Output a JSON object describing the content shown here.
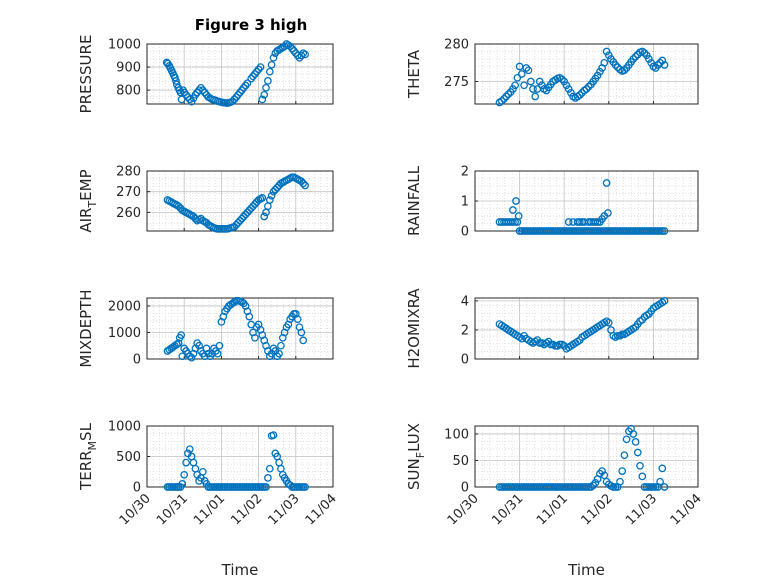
{
  "figure": {
    "title": "Figure 3 high"
  },
  "chart_data": [
    {
      "type": "scatter",
      "ylabel": "PRESSURE",
      "xlabel": "",
      "ylim": [
        740,
        1000
      ],
      "yticks": [
        "800",
        "900",
        "1000"
      ],
      "xlim": [
        0,
        5
      ],
      "xticks": [
        "10/30",
        "10/31",
        "11/01",
        "11/02",
        "11/03",
        "11/04"
      ],
      "x": [
        0.53,
        0.56,
        0.6,
        0.63,
        0.66,
        0.69,
        0.72,
        0.75,
        0.78,
        0.8,
        0.84,
        0.87,
        0.9,
        0.93,
        0.97,
        1.0,
        1.05,
        1.1,
        1.15,
        1.2,
        1.25,
        1.3,
        1.35,
        1.4,
        1.45,
        1.5,
        1.55,
        1.6,
        1.65,
        1.7,
        1.75,
        1.8,
        1.85,
        1.9,
        1.95,
        2.0,
        2.05,
        2.1,
        2.15,
        2.2,
        2.25,
        2.3,
        2.35,
        2.4,
        2.45,
        2.5,
        2.55,
        2.6,
        2.65,
        2.7,
        2.8,
        2.85,
        2.9,
        2.95,
        3.0,
        3.05,
        3.1,
        3.15,
        3.2,
        3.25,
        3.3,
        3.35,
        3.4,
        3.45,
        3.5,
        3.55,
        3.6,
        3.65,
        3.7,
        3.75,
        3.8,
        3.85,
        3.9,
        3.95,
        4.0,
        4.05,
        4.1,
        4.15,
        4.2,
        4.25
      ],
      "y": [
        920,
        915,
        905,
        895,
        885,
        875,
        865,
        855,
        840,
        825,
        810,
        800,
        790,
        760,
        800,
        790,
        780,
        770,
        760,
        750,
        765,
        780,
        790,
        800,
        810,
        800,
        790,
        780,
        770,
        765,
        760,
        758,
        755,
        752,
        750,
        748,
        746,
        745,
        744,
        745,
        748,
        752,
        760,
        770,
        780,
        790,
        800,
        810,
        820,
        830,
        850,
        860,
        870,
        880,
        890,
        900,
        760,
        780,
        810,
        840,
        880,
        910,
        940,
        960,
        970,
        975,
        980,
        985,
        990,
        1000,
        995,
        990,
        980,
        970,
        960,
        950,
        940,
        950,
        960,
        955
      ]
    },
    {
      "type": "scatter",
      "ylabel": "THETA",
      "xlabel": "",
      "ylim": [
        272,
        280
      ],
      "yticks": [
        "275",
        "280"
      ],
      "xlim": [
        0,
        5
      ],
      "xticks": [
        "10/30",
        "10/31",
        "11/01",
        "11/02",
        "11/03",
        "11/04"
      ],
      "x": [
        0.55,
        0.6,
        0.65,
        0.7,
        0.75,
        0.8,
        0.85,
        0.9,
        0.95,
        1.0,
        1.05,
        1.1,
        1.15,
        1.2,
        1.25,
        1.3,
        1.35,
        1.4,
        1.45,
        1.5,
        1.55,
        1.6,
        1.65,
        1.7,
        1.75,
        1.8,
        1.85,
        1.9,
        1.95,
        2.0,
        2.05,
        2.1,
        2.15,
        2.2,
        2.25,
        2.3,
        2.35,
        2.4,
        2.45,
        2.5,
        2.55,
        2.6,
        2.65,
        2.7,
        2.75,
        2.8,
        2.85,
        2.9,
        2.95,
        3.0,
        3.05,
        3.1,
        3.15,
        3.2,
        3.25,
        3.3,
        3.35,
        3.4,
        3.45,
        3.5,
        3.55,
        3.6,
        3.65,
        3.7,
        3.75,
        3.8,
        3.85,
        3.9,
        3.95,
        4.0,
        4.05,
        4.1,
        4.15,
        4.2,
        4.25
      ],
      "y": [
        272.2,
        272.4,
        272.7,
        273.0,
        273.3,
        273.6,
        274.0,
        274.5,
        275.5,
        277.0,
        276.0,
        274.5,
        276.8,
        276.5,
        275.0,
        274.0,
        273.0,
        274.0,
        275.0,
        274.5,
        274.0,
        273.8,
        274.2,
        274.6,
        275.0,
        275.2,
        275.4,
        275.5,
        275.3,
        275.0,
        274.5,
        274.0,
        273.5,
        273.0,
        272.8,
        273.0,
        273.2,
        273.5,
        273.8,
        274.0,
        274.3,
        274.6,
        275.0,
        275.4,
        275.8,
        276.3,
        276.8,
        277.5,
        279.0,
        278.5,
        278.0,
        277.6,
        277.2,
        276.9,
        276.6,
        276.4,
        276.5,
        276.8,
        277.2,
        277.6,
        278.0,
        278.3,
        278.6,
        278.9,
        279.0,
        278.8,
        278.5,
        278.0,
        277.5,
        277.0,
        276.8,
        277.2,
        277.5,
        277.8,
        277.2
      ]
    },
    {
      "type": "scatter",
      "ylabel": "AIR_TEMP",
      "xlabel": "",
      "ylim": [
        251,
        280
      ],
      "yticks": [
        "260",
        "270",
        "280"
      ],
      "xlim": [
        0,
        5
      ],
      "xticks": [
        "10/30",
        "10/31",
        "11/01",
        "11/02",
        "11/03",
        "11/04"
      ],
      "x": [
        0.55,
        0.6,
        0.65,
        0.7,
        0.75,
        0.8,
        0.85,
        0.9,
        0.95,
        1.0,
        1.05,
        1.1,
        1.15,
        1.2,
        1.25,
        1.3,
        1.35,
        1.4,
        1.45,
        1.5,
        1.55,
        1.6,
        1.65,
        1.7,
        1.75,
        1.8,
        1.85,
        1.9,
        1.95,
        2.0,
        2.05,
        2.1,
        2.15,
        2.2,
        2.25,
        2.3,
        2.35,
        2.4,
        2.45,
        2.5,
        2.55,
        2.6,
        2.65,
        2.7,
        2.75,
        2.8,
        2.85,
        2.9,
        2.95,
        3.0,
        3.05,
        3.1,
        3.15,
        3.2,
        3.25,
        3.3,
        3.35,
        3.4,
        3.45,
        3.5,
        3.55,
        3.6,
        3.65,
        3.7,
        3.75,
        3.8,
        3.85,
        3.9,
        3.95,
        4.0,
        4.05,
        4.1,
        4.15,
        4.2,
        4.25
      ],
      "y": [
        266,
        265.5,
        265,
        264.5,
        264,
        263.5,
        263,
        262,
        261,
        260.5,
        260,
        259.5,
        259,
        258.5,
        258,
        257,
        256,
        256.5,
        257,
        256,
        255.5,
        255,
        254,
        253.5,
        253,
        252.5,
        252.2,
        252,
        252,
        252,
        252,
        252,
        252,
        252.2,
        252.5,
        252.8,
        253,
        254,
        255,
        256,
        257,
        258,
        259,
        260,
        261,
        262,
        263,
        264,
        265,
        266,
        266.5,
        267,
        258,
        260,
        263,
        266,
        268,
        270,
        271,
        272,
        273,
        274,
        274.5,
        275,
        275.5,
        276,
        276.5,
        277,
        277,
        276.5,
        276,
        275.5,
        275,
        274,
        273
      ]
    },
    {
      "type": "scatter",
      "ylabel": "RAINFALL",
      "xlabel": "",
      "ylim": [
        0,
        2
      ],
      "yticks": [
        "0",
        "1",
        "2"
      ],
      "xlim": [
        0,
        5
      ],
      "xticks": [
        "10/30",
        "10/31",
        "11/01",
        "11/02",
        "11/03",
        "11/04"
      ],
      "x": [
        0.55,
        0.6,
        0.65,
        0.7,
        0.75,
        0.8,
        0.85,
        0.9,
        0.95,
        1.0,
        1.05,
        1.1,
        1.15,
        1.2,
        1.25,
        1.3,
        1.35,
        1.4,
        1.45,
        1.5,
        1.55,
        1.6,
        1.65,
        1.7,
        1.75,
        1.8,
        1.85,
        1.9,
        1.95,
        2.0,
        2.05,
        2.1,
        2.15,
        2.2,
        2.25,
        2.3,
        2.35,
        2.4,
        2.45,
        2.5,
        2.55,
        2.6,
        2.65,
        2.7,
        2.75,
        2.8,
        2.85,
        2.9,
        2.95,
        3.0,
        3.05,
        3.1,
        3.15,
        3.2,
        3.25,
        3.3,
        3.35,
        3.4,
        3.45,
        3.5,
        3.55,
        3.6,
        3.65,
        3.7,
        3.75,
        3.8,
        3.85,
        3.9,
        3.95,
        4.0,
        4.05,
        4.1,
        4.15,
        4.2,
        4.25,
        0.85,
        0.92,
        0.98,
        2.1,
        2.2,
        2.3,
        2.35,
        2.4,
        2.45,
        2.55,
        2.6,
        2.65,
        2.7,
        2.75,
        2.8,
        2.85,
        2.9,
        2.95,
        2.98
      ],
      "y": [
        0.3,
        0.3,
        0.3,
        0.3,
        0.3,
        0.3,
        0.3,
        0.3,
        0.3,
        0,
        0,
        0,
        0,
        0,
        0,
        0,
        0,
        0,
        0,
        0,
        0,
        0,
        0,
        0,
        0,
        0,
        0,
        0,
        0,
        0,
        0,
        0,
        0,
        0,
        0,
        0,
        0,
        0,
        0,
        0,
        0,
        0,
        0,
        0,
        0,
        0,
        0,
        0,
        0,
        0,
        0,
        0,
        0,
        0,
        0,
        0,
        0,
        0,
        0,
        0,
        0,
        0,
        0,
        0,
        0,
        0,
        0,
        0,
        0,
        0,
        0,
        0,
        0,
        0,
        0,
        0.7,
        1.0,
        0.5,
        0.3,
        0.3,
        0.3,
        0.3,
        0.3,
        0.3,
        0.3,
        0.3,
        0.3,
        0.3,
        0.3,
        0.3,
        0.4,
        0.5,
        1.6,
        0.6
      ]
    },
    {
      "type": "scatter",
      "ylabel": "MIXDEPTH",
      "xlabel": "",
      "ylim": [
        0,
        2300
      ],
      "yticks": [
        "0",
        "1000",
        "2000"
      ],
      "xlim": [
        0,
        5
      ],
      "xticks": [
        "10/30",
        "10/31",
        "11/01",
        "11/02",
        "11/03",
        "11/04"
      ],
      "x": [
        0.55,
        0.6,
        0.65,
        0.7,
        0.75,
        0.8,
        0.85,
        0.88,
        0.92,
        0.95,
        1.0,
        1.05,
        1.1,
        1.15,
        1.2,
        1.25,
        1.3,
        1.35,
        1.4,
        1.45,
        1.5,
        1.55,
        1.6,
        1.65,
        1.7,
        1.75,
        1.8,
        1.85,
        1.9,
        1.95,
        2.0,
        2.05,
        2.1,
        2.15,
        2.2,
        2.25,
        2.3,
        2.35,
        2.4,
        2.45,
        2.5,
        2.55,
        2.6,
        2.65,
        2.7,
        2.75,
        2.8,
        2.85,
        2.9,
        2.95,
        3.0,
        3.05,
        3.1,
        3.15,
        3.2,
        3.25,
        3.3,
        3.35,
        3.4,
        3.45,
        3.5,
        3.55,
        3.6,
        3.65,
        3.7,
        3.75,
        3.8,
        3.85,
        3.9,
        3.95,
        4.0,
        4.05,
        4.1,
        4.15,
        4.2
      ],
      "y": [
        300,
        350,
        400,
        450,
        500,
        550,
        600,
        800,
        900,
        100,
        400,
        300,
        200,
        100,
        50,
        200,
        400,
        600,
        500,
        300,
        200,
        100,
        400,
        200,
        100,
        200,
        400,
        300,
        200,
        500,
        1400,
        1600,
        1800,
        1900,
        2000,
        2050,
        2100,
        2150,
        2200,
        2200,
        2180,
        2150,
        2100,
        2000,
        1800,
        1600,
        1300,
        1000,
        800,
        1200,
        1300,
        1100,
        900,
        700,
        500,
        300,
        100,
        200,
        400,
        300,
        100,
        200,
        500,
        800,
        1000,
        1200,
        1300,
        1500,
        1600,
        1700,
        1700,
        1500,
        1200,
        1000,
        700
      ]
    },
    {
      "type": "scatter",
      "ylabel": "H2OMIXRA",
      "xlabel": "",
      "ylim": [
        0,
        4.2
      ],
      "yticks": [
        "0",
        "2",
        "4"
      ],
      "xlim": [
        0,
        5
      ],
      "xticks": [
        "10/30",
        "10/31",
        "11/01",
        "11/02",
        "11/03",
        "11/04"
      ],
      "x": [
        0.55,
        0.6,
        0.65,
        0.7,
        0.75,
        0.8,
        0.85,
        0.9,
        0.95,
        1.0,
        1.05,
        1.1,
        1.15,
        1.2,
        1.25,
        1.3,
        1.35,
        1.4,
        1.45,
        1.5,
        1.55,
        1.6,
        1.65,
        1.7,
        1.75,
        1.8,
        1.85,
        1.9,
        1.95,
        2.0,
        2.05,
        2.1,
        2.15,
        2.2,
        2.25,
        2.3,
        2.35,
        2.4,
        2.45,
        2.5,
        2.55,
        2.6,
        2.65,
        2.7,
        2.75,
        2.8,
        2.85,
        2.9,
        2.95,
        3.0,
        3.05,
        3.1,
        3.15,
        3.2,
        3.25,
        3.3,
        3.35,
        3.4,
        3.45,
        3.5,
        3.55,
        3.6,
        3.65,
        3.7,
        3.75,
        3.8,
        3.85,
        3.9,
        3.95,
        4.0,
        4.05,
        4.1,
        4.15,
        4.2,
        4.25
      ],
      "y": [
        2.4,
        2.3,
        2.2,
        2.1,
        2.0,
        1.9,
        1.8,
        1.7,
        1.6,
        1.5,
        1.4,
        1.6,
        1.4,
        1.3,
        1.2,
        1.1,
        1.2,
        1.3,
        1.1,
        1.1,
        1.0,
        1.1,
        1.2,
        1.0,
        1.0,
        0.9,
        0.9,
        1.0,
        1.0,
        0.9,
        0.7,
        0.8,
        0.9,
        1.0,
        1.1,
        1.2,
        1.3,
        1.5,
        1.6,
        1.7,
        1.8,
        1.9,
        2.0,
        2.1,
        2.2,
        2.3,
        2.4,
        2.5,
        2.6,
        2.5,
        2.0,
        1.6,
        1.5,
        1.6,
        1.6,
        1.7,
        1.7,
        1.8,
        1.9,
        2.0,
        2.1,
        2.2,
        2.4,
        2.6,
        2.7,
        2.9,
        3.0,
        3.1,
        3.3,
        3.5,
        3.6,
        3.7,
        3.8,
        3.9,
        4.0
      ]
    },
    {
      "type": "scatter",
      "ylabel": "TERR_MSL",
      "xlabel": "Time",
      "ylim": [
        0,
        1000
      ],
      "yticks": [
        "0",
        "500",
        "1000"
      ],
      "xlim": [
        0,
        5
      ],
      "xticks": [
        "10/30",
        "10/31",
        "11/01",
        "11/02",
        "11/03",
        "11/04"
      ],
      "x": [
        0.55,
        0.6,
        0.65,
        0.7,
        0.75,
        0.8,
        0.85,
        0.9,
        0.95,
        1.0,
        1.05,
        1.1,
        1.15,
        1.2,
        1.25,
        1.3,
        1.35,
        1.4,
        1.45,
        1.5,
        1.55,
        1.6,
        1.65,
        1.7,
        1.75,
        1.8,
        1.85,
        1.9,
        1.95,
        2.0,
        2.05,
        2.1,
        2.15,
        2.2,
        2.25,
        2.3,
        2.35,
        2.4,
        2.45,
        2.5,
        2.55,
        2.6,
        2.65,
        2.7,
        2.75,
        2.8,
        2.85,
        2.9,
        2.95,
        3.0,
        3.05,
        3.1,
        3.15,
        3.2,
        3.25,
        3.3,
        3.35,
        3.4,
        3.45,
        3.5,
        3.55,
        3.6,
        3.65,
        3.7,
        3.75,
        3.8,
        3.85,
        3.9,
        3.95,
        4.0,
        4.05,
        4.1,
        4.15,
        4.2,
        4.25
      ],
      "y": [
        0,
        0,
        0,
        0,
        0,
        0,
        0,
        0,
        50,
        200,
        400,
        550,
        620,
        500,
        400,
        300,
        200,
        100,
        150,
        250,
        100,
        50,
        0,
        0,
        0,
        0,
        0,
        0,
        0,
        0,
        0,
        0,
        0,
        0,
        0,
        0,
        0,
        0,
        0,
        0,
        0,
        0,
        0,
        0,
        0,
        0,
        0,
        0,
        0,
        0,
        0,
        0,
        0,
        0,
        150,
        300,
        840,
        850,
        550,
        500,
        400,
        300,
        200,
        150,
        100,
        50,
        30,
        0,
        0,
        0,
        0,
        0,
        0,
        0,
        0
      ]
    },
    {
      "type": "scatter",
      "ylabel": "SUN_FLUX",
      "xlabel": "Time",
      "ylim": [
        0,
        115
      ],
      "yticks": [
        "0",
        "50",
        "100"
      ],
      "xlim": [
        0,
        5
      ],
      "xticks": [
        "10/30",
        "10/31",
        "11/01",
        "11/02",
        "11/03",
        "11/04"
      ],
      "x": [
        0.55,
        0.6,
        0.65,
        0.7,
        0.75,
        0.8,
        0.85,
        0.9,
        0.95,
        1.0,
        1.05,
        1.1,
        1.15,
        1.2,
        1.25,
        1.3,
        1.35,
        1.4,
        1.45,
        1.5,
        1.55,
        1.6,
        1.65,
        1.7,
        1.75,
        1.8,
        1.85,
        1.9,
        1.95,
        2.0,
        2.05,
        2.1,
        2.15,
        2.2,
        2.25,
        2.3,
        2.35,
        2.4,
        2.45,
        2.5,
        2.55,
        2.6,
        2.65,
        2.7,
        2.75,
        2.8,
        2.85,
        2.9,
        2.95,
        3.0,
        3.05,
        3.1,
        3.15,
        3.2,
        3.25,
        3.3,
        3.35,
        3.4,
        3.45,
        3.5,
        3.55,
        3.6,
        3.65,
        3.7,
        3.75,
        3.8,
        3.85,
        3.9,
        3.95,
        4.0,
        4.05,
        4.1,
        4.15,
        4.2,
        4.25
      ],
      "y": [
        0,
        0,
        0,
        0,
        0,
        0,
        0,
        0,
        0,
        0,
        0,
        0,
        0,
        0,
        0,
        0,
        0,
        0,
        0,
        0,
        0,
        0,
        0,
        0,
        0,
        0,
        0,
        0,
        0,
        0,
        0,
        0,
        0,
        0,
        0,
        0,
        0,
        0,
        0,
        0,
        0,
        0,
        3,
        8,
        15,
        25,
        30,
        22,
        10,
        5,
        2,
        0,
        0,
        0,
        10,
        30,
        60,
        90,
        105,
        110,
        100,
        85,
        65,
        40,
        20,
        0,
        0,
        0,
        0,
        0,
        0,
        0,
        10,
        35,
        0
      ]
    }
  ]
}
